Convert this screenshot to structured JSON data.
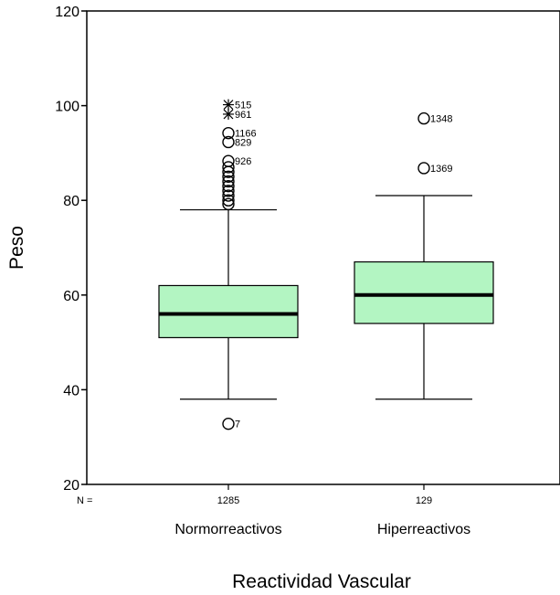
{
  "chart_data": {
    "type": "box",
    "title": "",
    "xlabel": "Reactividad Vascular",
    "ylabel": "Peso",
    "ylim": [
      20,
      120
    ],
    "yticks": [
      20,
      40,
      60,
      80,
      100,
      120
    ],
    "n_prefix": "N =",
    "grid": false,
    "legend": "none",
    "box_color": "#b3f5c2",
    "groups": [
      {
        "category": "Normorreactivos",
        "n": "1285",
        "min": 38,
        "q1": 51,
        "median": 56,
        "q3": 62,
        "max": 78,
        "outliers": [
          {
            "value": 100.2,
            "label": "515",
            "marker": "star"
          },
          {
            "value": 98.2,
            "label": "961",
            "marker": "star"
          },
          {
            "value": 94.2,
            "label": "1166",
            "marker": "circle"
          },
          {
            "value": 92.3,
            "label": "829",
            "marker": "circle"
          },
          {
            "value": 88.3,
            "label": "926",
            "marker": "circle"
          },
          {
            "value": 87.0,
            "label": "",
            "marker": "circle"
          },
          {
            "value": 86.0,
            "label": "",
            "marker": "circle"
          },
          {
            "value": 85.0,
            "label": "",
            "marker": "circle"
          },
          {
            "value": 84.0,
            "label": "",
            "marker": "circle"
          },
          {
            "value": 83.0,
            "label": "",
            "marker": "circle"
          },
          {
            "value": 82.0,
            "label": "",
            "marker": "circle"
          },
          {
            "value": 81.0,
            "label": "",
            "marker": "circle"
          },
          {
            "value": 80.0,
            "label": "",
            "marker": "circle"
          },
          {
            "value": 79.2,
            "label": "",
            "marker": "circle"
          },
          {
            "value": 32.8,
            "label": "7",
            "marker": "circle"
          }
        ]
      },
      {
        "category": "Hiperreactivos",
        "n": "129",
        "min": 38,
        "q1": 54,
        "median": 60,
        "q3": 67,
        "max": 81,
        "outliers": [
          {
            "value": 97.3,
            "label": "1348",
            "marker": "circle"
          },
          {
            "value": 86.8,
            "label": "1369",
            "marker": "circle"
          }
        ]
      }
    ]
  }
}
